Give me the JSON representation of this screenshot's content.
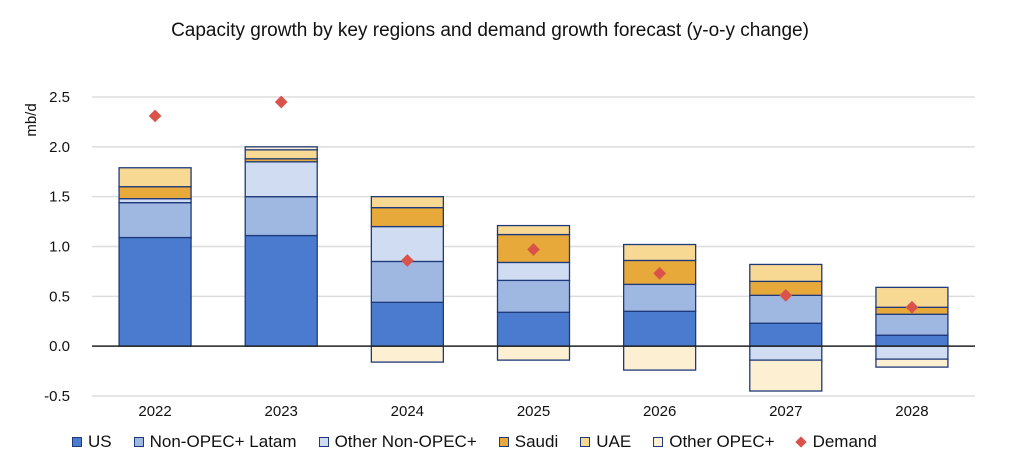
{
  "chart_data": {
    "type": "bar",
    "stacked": true,
    "title": "Capacity growth by key regions and demand growth forecast (y-o-y change)",
    "xlabel": "",
    "ylabel": "mb/d",
    "ylim": [
      -0.5,
      2.5
    ],
    "yticks": [
      "-0.5",
      "0.0",
      "0.5",
      "1.0",
      "1.5",
      "2.0",
      "2.5"
    ],
    "grid": true,
    "legend_position": "bottom",
    "categories": [
      "2022",
      "2023",
      "2024",
      "2025",
      "2026",
      "2027",
      "2028"
    ],
    "series": [
      {
        "name": "US",
        "color": "#4a7bcf",
        "values": [
          1.09,
          1.11,
          0.44,
          0.34,
          0.35,
          0.23,
          0.11
        ]
      },
      {
        "name": "Non-OPEC+ Latam",
        "color": "#9fb8e2",
        "values": [
          0.35,
          0.39,
          0.41,
          0.32,
          0.27,
          0.28,
          0.21
        ]
      },
      {
        "name": "Other Non-OPEC+",
        "color": "#cfdcf2",
        "values": [
          0.04,
          0.35,
          0.35,
          0.18,
          0.0,
          -0.14,
          -0.13
        ]
      },
      {
        "name": "Saudi",
        "color": "#e6a93a",
        "values": [
          0.12,
          0.03,
          0.19,
          0.28,
          0.24,
          0.14,
          0.07
        ]
      },
      {
        "name": "UAE",
        "color": "#f8d994",
        "values": [
          0.19,
          0.09,
          0.11,
          0.09,
          0.16,
          0.17,
          0.2
        ]
      },
      {
        "name": "Other OPEC+",
        "color": "#fdf0d2",
        "values": [
          0.0,
          0.03,
          -0.16,
          -0.14,
          -0.24,
          -0.31,
          -0.08
        ]
      }
    ],
    "demand": {
      "name": "Demand",
      "color": "#d9534a",
      "type": "scatter",
      "values": [
        2.31,
        2.45,
        0.86,
        0.97,
        0.73,
        0.51,
        0.39
      ]
    }
  }
}
